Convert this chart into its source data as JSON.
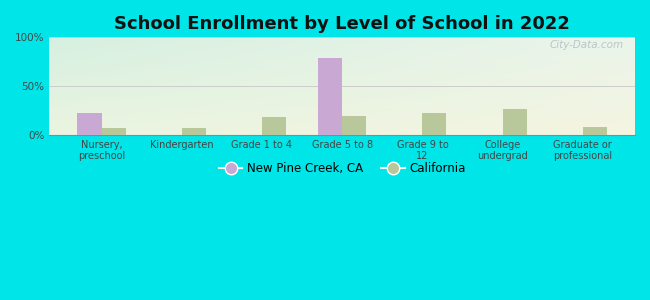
{
  "title": "School Enrollment by Level of School in 2022",
  "categories": [
    "Nursery,\npreschool",
    "Kindergarten",
    "Grade 1 to 4",
    "Grade 5 to 8",
    "Grade 9 to\n12",
    "College\nundergrad",
    "Graduate or\nprofessional"
  ],
  "new_pine_creek": [
    22,
    0,
    0,
    79,
    0,
    0,
    0
  ],
  "california": [
    7,
    7,
    18,
    19,
    22,
    26,
    8
  ],
  "pine_creek_color": "#c9a8d4",
  "california_color": "#b8c89a",
  "background_outer": "#00e5e8",
  "title_fontsize": 13,
  "ylim": [
    0,
    100
  ],
  "yticks": [
    0,
    50,
    100
  ],
  "ytick_labels": [
    "0%",
    "50%",
    "100%"
  ],
  "bar_width": 0.3,
  "legend_labels": [
    "New Pine Creek, CA",
    "California"
  ],
  "watermark": "City-Data.com",
  "grad_top_left": "#d4ede4",
  "grad_bottom_right": "#eeeedd"
}
